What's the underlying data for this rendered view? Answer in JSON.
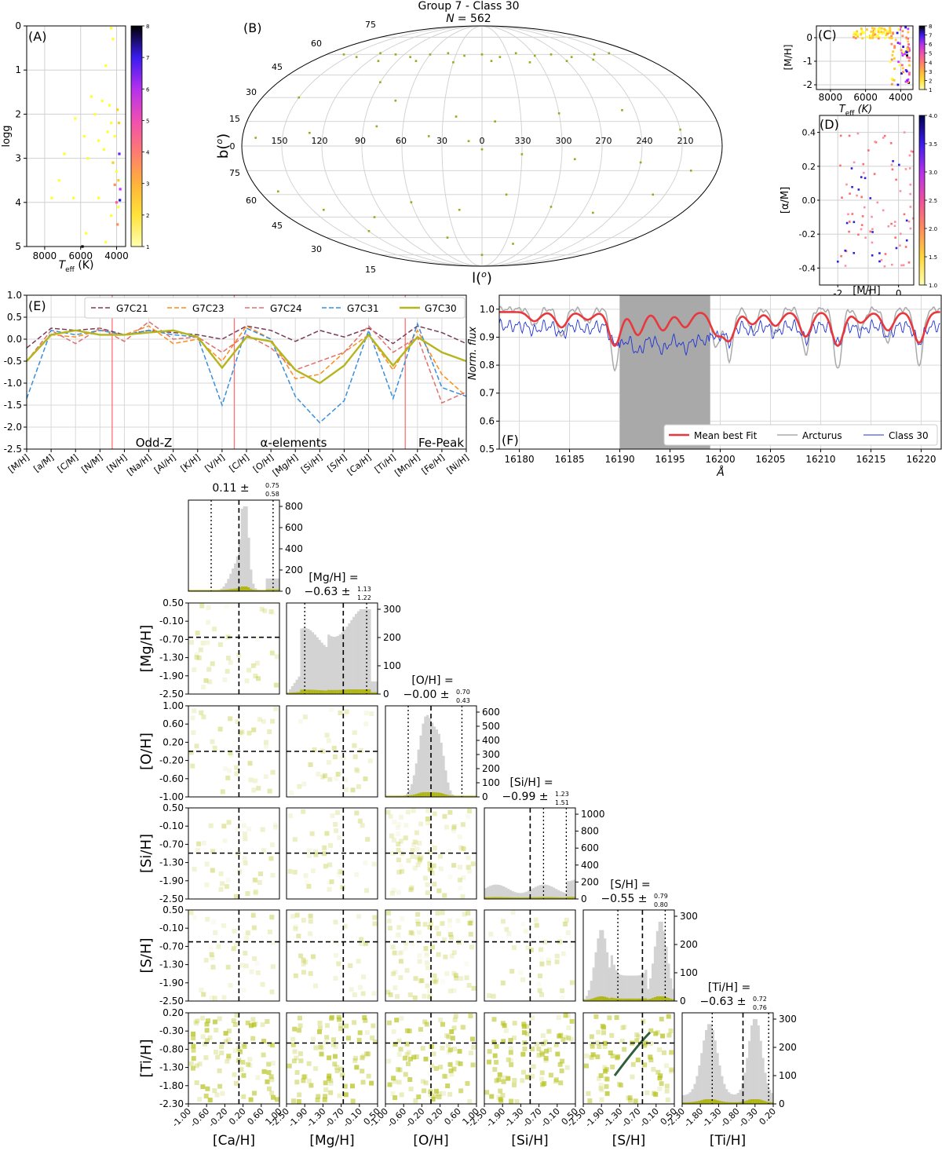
{
  "figure": {
    "title": "Group 7 - Class 30",
    "subtitle_prefix": "N",
    "subtitle_value": "= 562"
  },
  "colors": {
    "g7c21": "#7a3b5a",
    "g7c23": "#ff8c1a",
    "g7c24": "#e07070",
    "g7c31": "#3b8fd9",
    "g7c30": "#b5b51e",
    "mean_fit": "#e8383d",
    "arcturus": "#aaaaaa",
    "class30": "#1f32d6",
    "hist_gray": "#d3d3d3",
    "hist_olive": "#b0b614",
    "red_line": "#ff6f6f"
  },
  "chart_data": [
    {
      "panel": "(A)",
      "type": "scatter",
      "xlabel": "T_eff (K)",
      "ylabel": "logg",
      "xlim": [
        9000,
        3500
      ],
      "ylim": [
        5,
        0
      ],
      "x_ticks": [
        "8000",
        "6000",
        "4000"
      ],
      "y_ticks": [
        "0",
        "1",
        "2",
        "3",
        "4",
        "5"
      ],
      "colorbar_ticks": [
        "1",
        "2",
        "3",
        "4",
        "5",
        "6",
        "7",
        "8"
      ],
      "grid": true,
      "points": [
        [
          4300,
          0.05,
          1
        ],
        [
          4200,
          0.3,
          1
        ],
        [
          4600,
          0.9,
          1
        ],
        [
          5400,
          1.6,
          1
        ],
        [
          4800,
          1.7,
          1
        ],
        [
          5200,
          2.0,
          1
        ],
        [
          4400,
          1.8,
          1
        ],
        [
          4300,
          2.2,
          1
        ],
        [
          4500,
          2.4,
          1
        ],
        [
          5800,
          2.5,
          1
        ],
        [
          6300,
          2.1,
          1
        ],
        [
          6900,
          2.9,
          1
        ],
        [
          5000,
          2.6,
          1
        ],
        [
          4700,
          2.8,
          1
        ],
        [
          5600,
          3.0,
          1
        ],
        [
          4200,
          3.1,
          2
        ],
        [
          4000,
          3.3,
          1
        ],
        [
          3900,
          3.5,
          2
        ],
        [
          4100,
          3.6,
          3
        ],
        [
          3850,
          2.9,
          6
        ],
        [
          3800,
          3.7,
          5
        ],
        [
          3900,
          4.1,
          1
        ],
        [
          3950,
          4.5,
          3
        ],
        [
          4300,
          4.3,
          1
        ],
        [
          5000,
          3.9,
          1
        ],
        [
          6400,
          3.9,
          1
        ],
        [
          7200,
          3.5,
          1
        ],
        [
          7600,
          3.9,
          1
        ],
        [
          5700,
          4.7,
          1
        ],
        [
          5900,
          5.0,
          8
        ],
        [
          4600,
          4.9,
          1
        ],
        [
          4100,
          2.5,
          1
        ],
        [
          3950,
          1.9,
          2
        ],
        [
          3870,
          2.2,
          2
        ],
        [
          4000,
          4.0,
          4
        ],
        [
          3820,
          3.95,
          7
        ]
      ]
    },
    {
      "panel": "(B)",
      "type": "scatter",
      "projection": "mollweide",
      "xlabel": "l(o)",
      "ylabel": "b(o)",
      "lon_labels": [
        "150",
        "120",
        "90",
        "60",
        "30",
        "0",
        "330",
        "300",
        "270",
        "240",
        "210"
      ],
      "lat_labels_top": [
        "75",
        "60",
        "45",
        "30",
        "15",
        "0"
      ],
      "lat_labels_bottom": [
        "75",
        "60",
        "45",
        "30",
        "15"
      ],
      "grid": true,
      "points": [
        [
          160,
          60
        ],
        [
          140,
          58
        ],
        [
          120,
          61
        ],
        [
          100,
          60
        ],
        [
          80,
          58
        ],
        [
          60,
          60
        ],
        [
          40,
          61
        ],
        [
          20,
          59
        ],
        [
          0,
          60
        ],
        [
          -20,
          58
        ],
        [
          -40,
          61
        ],
        [
          -60,
          59
        ],
        [
          -80,
          60
        ],
        [
          -100,
          58
        ],
        [
          -130,
          60
        ],
        [
          -150,
          61
        ],
        [
          110,
          55
        ],
        [
          70,
          55
        ],
        [
          30,
          54
        ],
        [
          -10,
          55
        ],
        [
          -50,
          54
        ],
        [
          -90,
          55
        ],
        [
          -120,
          56
        ],
        [
          150,
          30
        ],
        [
          90,
          40
        ],
        [
          70,
          28
        ],
        [
          20,
          18
        ],
        [
          -10,
          15
        ],
        [
          -60,
          20
        ],
        [
          -110,
          22
        ],
        [
          -150,
          10
        ],
        [
          170,
          5
        ],
        [
          130,
          8
        ],
        [
          80,
          12
        ],
        [
          40,
          6
        ],
        [
          10,
          3
        ],
        [
          0,
          -2
        ],
        [
          -30,
          -5
        ],
        [
          -70,
          -8
        ],
        [
          -120,
          -10
        ],
        [
          -160,
          -15
        ],
        [
          165,
          -28
        ],
        [
          140,
          -40
        ],
        [
          100,
          -45
        ],
        [
          60,
          -35
        ],
        [
          20,
          -40
        ],
        [
          -20,
          -30
        ],
        [
          -60,
          -38
        ],
        [
          -100,
          -42
        ],
        [
          -140,
          -30
        ],
        [
          120,
          -55
        ],
        [
          40,
          -60
        ],
        [
          -40,
          -65
        ],
        [
          0,
          -75
        ]
      ]
    },
    {
      "panel": "(C)",
      "type": "scatter",
      "xlabel": "T_eff (K)",
      "ylabel": "[M/H]",
      "x_ticks": [
        "8000",
        "6000",
        "4000"
      ],
      "y_ticks": [
        "0",
        "-1",
        "-2"
      ],
      "colorbar_ticks": [
        "1",
        "2",
        "3",
        "4",
        "5",
        "6",
        "7",
        "8"
      ]
    },
    {
      "panel": "(D)",
      "type": "scatter",
      "xlabel": "[M/H]",
      "ylabel": "[α/M]",
      "x_ticks": [
        "-2",
        "-1",
        "0"
      ],
      "y_ticks": [
        "0.4",
        "0.2",
        "0.0",
        "-0.2",
        "-0.4"
      ],
      "colorbar_ticks": [
        "1.0",
        "1.5",
        "2.0",
        "2.5",
        "3.0",
        "3.5",
        "4.0"
      ]
    },
    {
      "panel": "(E)",
      "type": "line",
      "ylim": [
        -2.5,
        1.0
      ],
      "y_ticks": [
        "1.0",
        "0.5",
        "0.0",
        "-0.5",
        "-1.0",
        "-1.5",
        "-2.0",
        "-2.5"
      ],
      "categories": [
        "[M/H]",
        "[a/M]",
        "[C/M]",
        "[N/M]",
        "[N/H]",
        "[Na/H]",
        "[Al/H]",
        "[K/H]",
        "[V/H]",
        "[C/H]",
        "[O/H]",
        "[Mg/H]",
        "[Si/H]",
        "[S/H]",
        "[Ca/H]",
        "[Ti/H]",
        "[Mn/H]",
        "[Fe/H]",
        "[Ni/H]"
      ],
      "group_labels": [
        "Odd-Z",
        "α-elements",
        "Fe-Peak"
      ],
      "series": [
        {
          "name": "G7C21",
          "values": [
            -0.2,
            0.25,
            0.2,
            0.25,
            0.1,
            0.2,
            0.15,
            0.1,
            0.0,
            0.3,
            0.2,
            -0.05,
            0.2,
            0.05,
            0.25,
            -0.1,
            0.3,
            0.15,
            -0.1
          ]
        },
        {
          "name": "G7C23",
          "values": [
            -0.5,
            0.1,
            0.05,
            0.2,
            0.1,
            0.3,
            -0.1,
            0.0,
            -0.5,
            0.3,
            0.0,
            -0.9,
            -0.8,
            -0.3,
            0.1,
            -0.7,
            0.2,
            -0.8,
            -1.3
          ]
        },
        {
          "name": "G7C24",
          "values": [
            -0.5,
            0.2,
            -0.1,
            0.25,
            -0.05,
            0.4,
            0.0,
            0.05,
            -0.3,
            0.1,
            -0.2,
            -0.7,
            -0.5,
            -0.3,
            0.3,
            -0.3,
            0.05,
            -1.45,
            -1.2
          ]
        },
        {
          "name": "G7C31",
          "values": [
            -1.35,
            0.2,
            0.1,
            0.2,
            0.1,
            0.2,
            0.1,
            0.05,
            -1.5,
            0.25,
            0.0,
            -1.3,
            -1.9,
            -1.4,
            0.2,
            -1.35,
            0.35,
            -1.1,
            -1.3
          ]
        },
        {
          "name": "G7C30",
          "values": [
            -0.5,
            0.1,
            0.2,
            0.1,
            0.1,
            0.15,
            0.2,
            0.05,
            -0.65,
            0.05,
            -0.05,
            -0.7,
            -1.0,
            -0.6,
            0.1,
            -0.6,
            0.05,
            -0.3,
            -0.5
          ]
        }
      ]
    },
    {
      "panel": "(F)",
      "type": "line",
      "xlabel": "Å",
      "ylabel": "Norm. flux",
      "xlim": [
        16178,
        16222
      ],
      "ylim": [
        0.5,
        1.05
      ],
      "x_ticks": [
        "16180",
        "16185",
        "16190",
        "16195",
        "16200",
        "16205",
        "16210",
        "16215",
        "16220"
      ],
      "y_ticks": [
        "1.0",
        "0.9",
        "0.8",
        "0.7",
        "0.6",
        "0.5"
      ],
      "shaded_range": [
        16190,
        16199
      ],
      "series": [
        {
          "name": "Mean best Fit"
        },
        {
          "name": "Arcturus"
        },
        {
          "name": "Class 30"
        }
      ]
    },
    {
      "panel": "corner",
      "type": "scatter",
      "variables": [
        "[Ca/H]",
        "[Mg/H]",
        "[O/H]",
        "[Si/H]",
        "[S/H]",
        "[Ti/H]"
      ],
      "diag_titles": [
        {
          "top": "0.11 ±",
          "sup": "0.75",
          "sub": "0.58",
          "label": ""
        },
        {
          "top": "[Mg/H] =",
          "sup": "1.13",
          "sub": "1.22",
          "label": "−0.63 ±"
        },
        {
          "top": "[O/H] =",
          "sup": "0.70",
          "sub": "0.43",
          "label": "−0.00 ±"
        },
        {
          "top": "[Si/H] =",
          "sup": "1.23",
          "sub": "1.51",
          "label": "−0.99 ±"
        },
        {
          "top": "[S/H] =",
          "sup": "0.79",
          "sub": "0.80",
          "label": "−0.55 ±"
        },
        {
          "top": "[Ti/H] =",
          "sup": "0.72",
          "sub": "0.76",
          "label": "−0.63 ±"
        }
      ],
      "medians": [
        0.11,
        -0.63,
        0.0,
        -0.99,
        -0.55,
        -0.63
      ],
      "hist_ticks": [
        [
          "800",
          "600",
          "400",
          "200",
          "0"
        ],
        [
          "300",
          "200",
          "100",
          "0"
        ],
        [
          "600",
          "500",
          "400",
          "300",
          "200",
          "100",
          "0"
        ],
        [
          "1000",
          "800",
          "600",
          "400",
          "200",
          "0"
        ],
        [
          "300",
          "200",
          "100",
          "0"
        ],
        [
          "300",
          "200",
          "100",
          "0"
        ]
      ],
      "y_ticks": {
        "Mg": [
          "0.50",
          "-0.10",
          "-0.70",
          "-1.30",
          "-1.90",
          "-2.50"
        ],
        "O": [
          "1.00",
          "0.60",
          "0.20",
          "-0.20",
          "-0.60",
          "-1.00"
        ],
        "Si": [
          "0.50",
          "-0.10",
          "-0.70",
          "-1.30",
          "-1.90",
          "-2.50"
        ],
        "S": [
          "0.50",
          "-0.10",
          "-0.70",
          "-1.30",
          "-1.90",
          "-2.50"
        ],
        "Ti": [
          "0.20",
          "-0.30",
          "-0.80",
          "-1.30",
          "-1.80",
          "-2.30"
        ]
      },
      "x_ticks": {
        "Ca": [
          "-1.00",
          "-0.60",
          "-0.20",
          "0.20",
          "0.60",
          "1.00"
        ],
        "Mg": [
          "-2.50",
          "-1.90",
          "-1.30",
          "-0.70",
          "-0.10",
          "0.50"
        ],
        "O": [
          "-1.00",
          "-0.60",
          "-0.20",
          "0.20",
          "0.60",
          "1.00"
        ],
        "Si": [
          "-2.50",
          "-1.90",
          "-1.30",
          "-0.70",
          "-0.10",
          "0.50"
        ],
        "S": [
          "-2.50",
          "-1.90",
          "-1.30",
          "-0.70",
          "-0.10",
          "0.50"
        ],
        "Ti": [
          "-2.30",
          "-1.80",
          "-1.30",
          "-0.80",
          "-0.30",
          "0.20"
        ]
      }
    }
  ]
}
